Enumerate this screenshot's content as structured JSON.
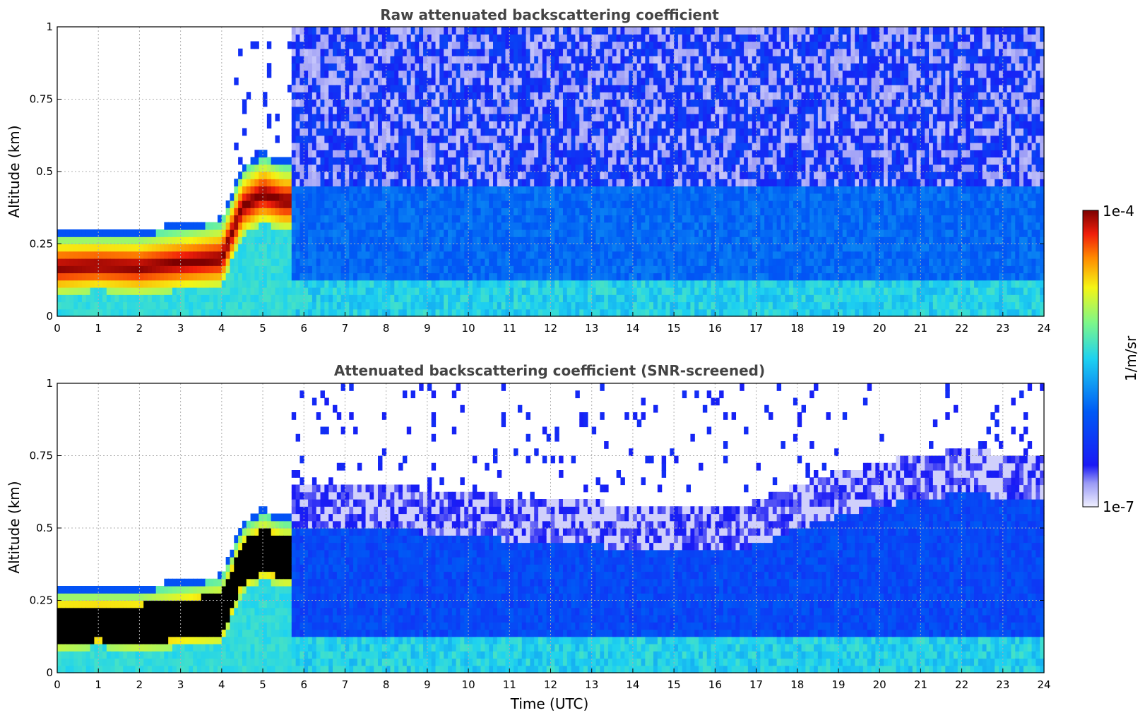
{
  "chart_data": [
    {
      "type": "heatmap",
      "title": "Raw attenuated backscattering coefficient",
      "xlabel": "",
      "ylabel": "Altitude (km)",
      "xlim": [
        0,
        24
      ],
      "ylim": [
        0,
        1
      ],
      "x_ticks": [
        "0",
        "1",
        "2",
        "3",
        "4",
        "5",
        "6",
        "7",
        "8",
        "9",
        "10",
        "11",
        "12",
        "13",
        "14",
        "15",
        "16",
        "17",
        "18",
        "19",
        "20",
        "21",
        "22",
        "23",
        "24"
      ],
      "y_ticks": [
        "0",
        "0.25",
        "0.5",
        "0.75",
        "1"
      ],
      "grid": true,
      "colormap": "jet",
      "scale": "log",
      "fog_layer": {
        "time_utc": [
          0,
          1,
          2,
          3,
          4,
          4.5,
          5,
          5.5
        ],
        "base_km": [
          0.08,
          0.09,
          0.08,
          0.09,
          0.1,
          0.28,
          0.32,
          0.3
        ],
        "top_km": [
          0.28,
          0.28,
          0.28,
          0.3,
          0.32,
          0.5,
          0.55,
          0.52
        ]
      },
      "noise_onset_utc": 5.5
    },
    {
      "type": "heatmap",
      "title": "Attenuated backscattering coefficient (SNR-screened)",
      "xlabel": "Time (UTC)",
      "ylabel": "Altitude (km)",
      "xlim": [
        0,
        24
      ],
      "ylim": [
        0,
        1
      ],
      "x_ticks": [
        "0",
        "1",
        "2",
        "3",
        "4",
        "5",
        "6",
        "7",
        "8",
        "9",
        "10",
        "11",
        "12",
        "13",
        "14",
        "15",
        "16",
        "17",
        "18",
        "19",
        "20",
        "21",
        "22",
        "23",
        "24"
      ],
      "y_ticks": [
        "0",
        "0.25",
        "0.5",
        "0.75",
        "1"
      ],
      "grid": true,
      "colormap": "jet",
      "scale": "log",
      "saturated_color": "#000000",
      "boundary_layer_top_km": {
        "time_utc": [
          6,
          8,
          10,
          12,
          14,
          16,
          17,
          18,
          20,
          22,
          24
        ],
        "values": [
          0.5,
          0.5,
          0.47,
          0.45,
          0.43,
          0.42,
          0.44,
          0.5,
          0.58,
          0.62,
          0.6
        ]
      }
    }
  ],
  "colorbar": {
    "label": "1/m/sr",
    "max_label": "1e-4",
    "min_label": "1e-7",
    "range": [
      1e-07,
      0.0001
    ],
    "scale": "log"
  },
  "colors": {
    "low": "#e8e8fa",
    "blue": "#0a14f0",
    "cyan": "#1ed2f0",
    "yellow": "#f5f514",
    "red": "#f01e0a",
    "high": "#7d0000",
    "saturated": "#000000",
    "title_text": "#444444"
  }
}
